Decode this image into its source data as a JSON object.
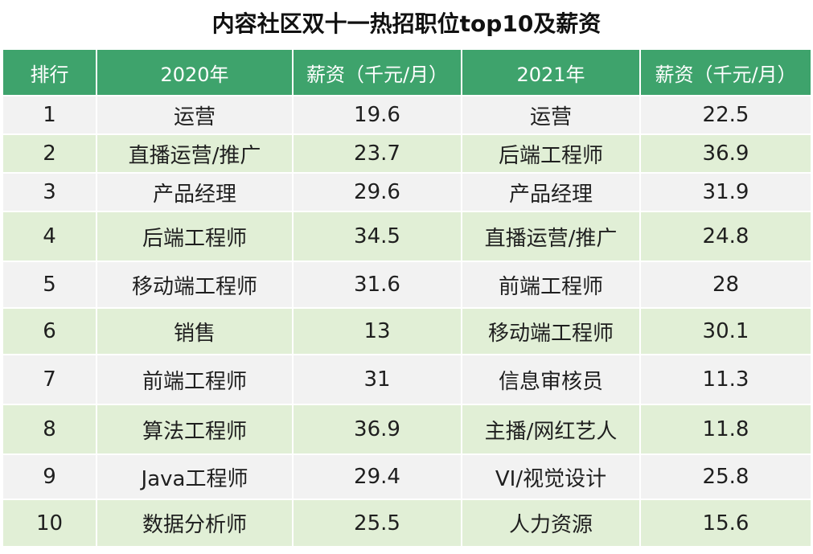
{
  "chart_data": {
    "type": "table",
    "title": "内容社区双十一热招职位top10及薪资",
    "columns": [
      "排行",
      "2020年",
      "薪资（千元/月）",
      "2021年",
      "薪资（千元/月）"
    ],
    "rows": [
      [
        "1",
        "运营",
        "19.6",
        "运营",
        "22.5"
      ],
      [
        "2",
        "直播运营/推广",
        "23.7",
        "后端工程师",
        "36.9"
      ],
      [
        "3",
        "产品经理",
        "29.6",
        "产品经理",
        "31.9"
      ],
      [
        "4",
        "后端工程师",
        "34.5",
        "直播运营/推广",
        "24.8"
      ],
      [
        "5",
        "移动端工程师",
        "31.6",
        "前端工程师",
        "28"
      ],
      [
        "6",
        "销售",
        "13",
        "移动端工程师",
        "30.1"
      ],
      [
        "7",
        "前端工程师",
        "31",
        "信息审核员",
        "11.3"
      ],
      [
        "8",
        "算法工程师",
        "36.9",
        "主播/网红艺人",
        "11.8"
      ],
      [
        "9",
        "Java工程师",
        "29.4",
        "VI/视觉设计",
        "25.8"
      ],
      [
        "10",
        "数据分析师",
        "25.5",
        "人力资源",
        "15.6"
      ]
    ]
  },
  "colors": {
    "header": "#3ea36c",
    "row_odd": "#f2f2f2",
    "row_even": "#e1efd6"
  }
}
